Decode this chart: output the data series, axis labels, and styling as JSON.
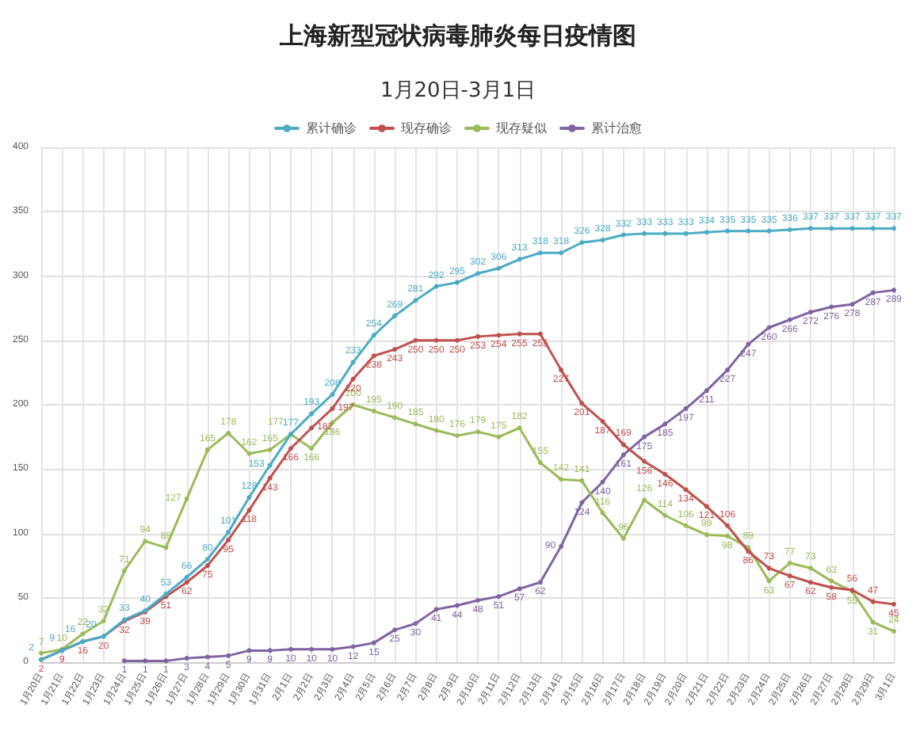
{
  "chart_data": {
    "type": "line",
    "title": "上海新型冠状病毒肺炎每日疫情图",
    "subtitle": "1月20日-3月1日",
    "categories": [
      "1月20日",
      "1月21日",
      "1月22日",
      "1月23日",
      "1月24日",
      "1月25日",
      "1月26日",
      "1月27日",
      "1月28日",
      "1月29日",
      "1月30日",
      "1月31日",
      "2月1日",
      "2月2日",
      "2月3日",
      "2月4日",
      "2月5日",
      "2月6日",
      "2月7日",
      "2月8日",
      "2月9日",
      "2月10日",
      "2月11日",
      "2月12日",
      "2月13日",
      "2月14日",
      "2月15日",
      "2月16日",
      "2月17日",
      "2月18日",
      "2月19日",
      "2月20日",
      "2月21日",
      "2月22日",
      "2月23日",
      "2月24日",
      "2月25日",
      "2月26日",
      "2月27日",
      "2月28日",
      "2月29日",
      "3月1日"
    ],
    "series": [
      {
        "name": "累计确诊",
        "color": "#4bacc6",
        "values": [
          2,
          9,
          16,
          20,
          33,
          40,
          53,
          66,
          80,
          101,
          128,
          153,
          177,
          193,
          208,
          233,
          254,
          269,
          281,
          292,
          295,
          302,
          306,
          313,
          318,
          318,
          326,
          328,
          332,
          333,
          333,
          333,
          334,
          335,
          335,
          335,
          336,
          337,
          337,
          337,
          337,
          337
        ]
      },
      {
        "name": "现存确诊",
        "color": "#c0504d",
        "values": [
          2,
          9,
          16,
          20,
          32,
          39,
          51,
          62,
          75,
          95,
          118,
          143,
          166,
          182,
          197,
          220,
          238,
          243,
          250,
          250,
          250,
          253,
          254,
          255,
          255,
          227,
          201,
          187,
          169,
          156,
          146,
          134,
          121,
          106,
          86,
          73,
          67,
          62,
          58,
          56,
          47,
          45
        ]
      },
      {
        "name": "现存疑似",
        "color": "#9bbb59",
        "values": [
          7,
          10,
          22,
          32,
          71,
          94,
          89,
          127,
          165,
          178,
          162,
          165,
          177,
          166,
          186,
          200,
          195,
          190,
          185,
          180,
          176,
          179,
          175,
          182,
          155,
          142,
          141,
          116,
          96,
          126,
          114,
          106,
          99,
          98,
          89,
          63,
          77,
          73,
          63,
          55,
          31,
          24
        ]
      },
      {
        "name": "累计治愈",
        "color": "#8064a2",
        "values": [
          null,
          null,
          null,
          null,
          1,
          1,
          1,
          3,
          4,
          5,
          9,
          9,
          10,
          10,
          10,
          12,
          15,
          25,
          30,
          41,
          44,
          48,
          51,
          57,
          62,
          90,
          124,
          140,
          161,
          175,
          185,
          197,
          211,
          227,
          247,
          260,
          266,
          272,
          276,
          278,
          287,
          289
        ]
      }
    ],
    "ylim": [
      0,
      400
    ],
    "yticks": [
      0,
      50,
      100,
      150,
      200,
      250,
      300,
      350,
      400
    ],
    "grid": true,
    "legend": "top",
    "marker": "circle",
    "line_style": "solid",
    "data_labels": true
  }
}
